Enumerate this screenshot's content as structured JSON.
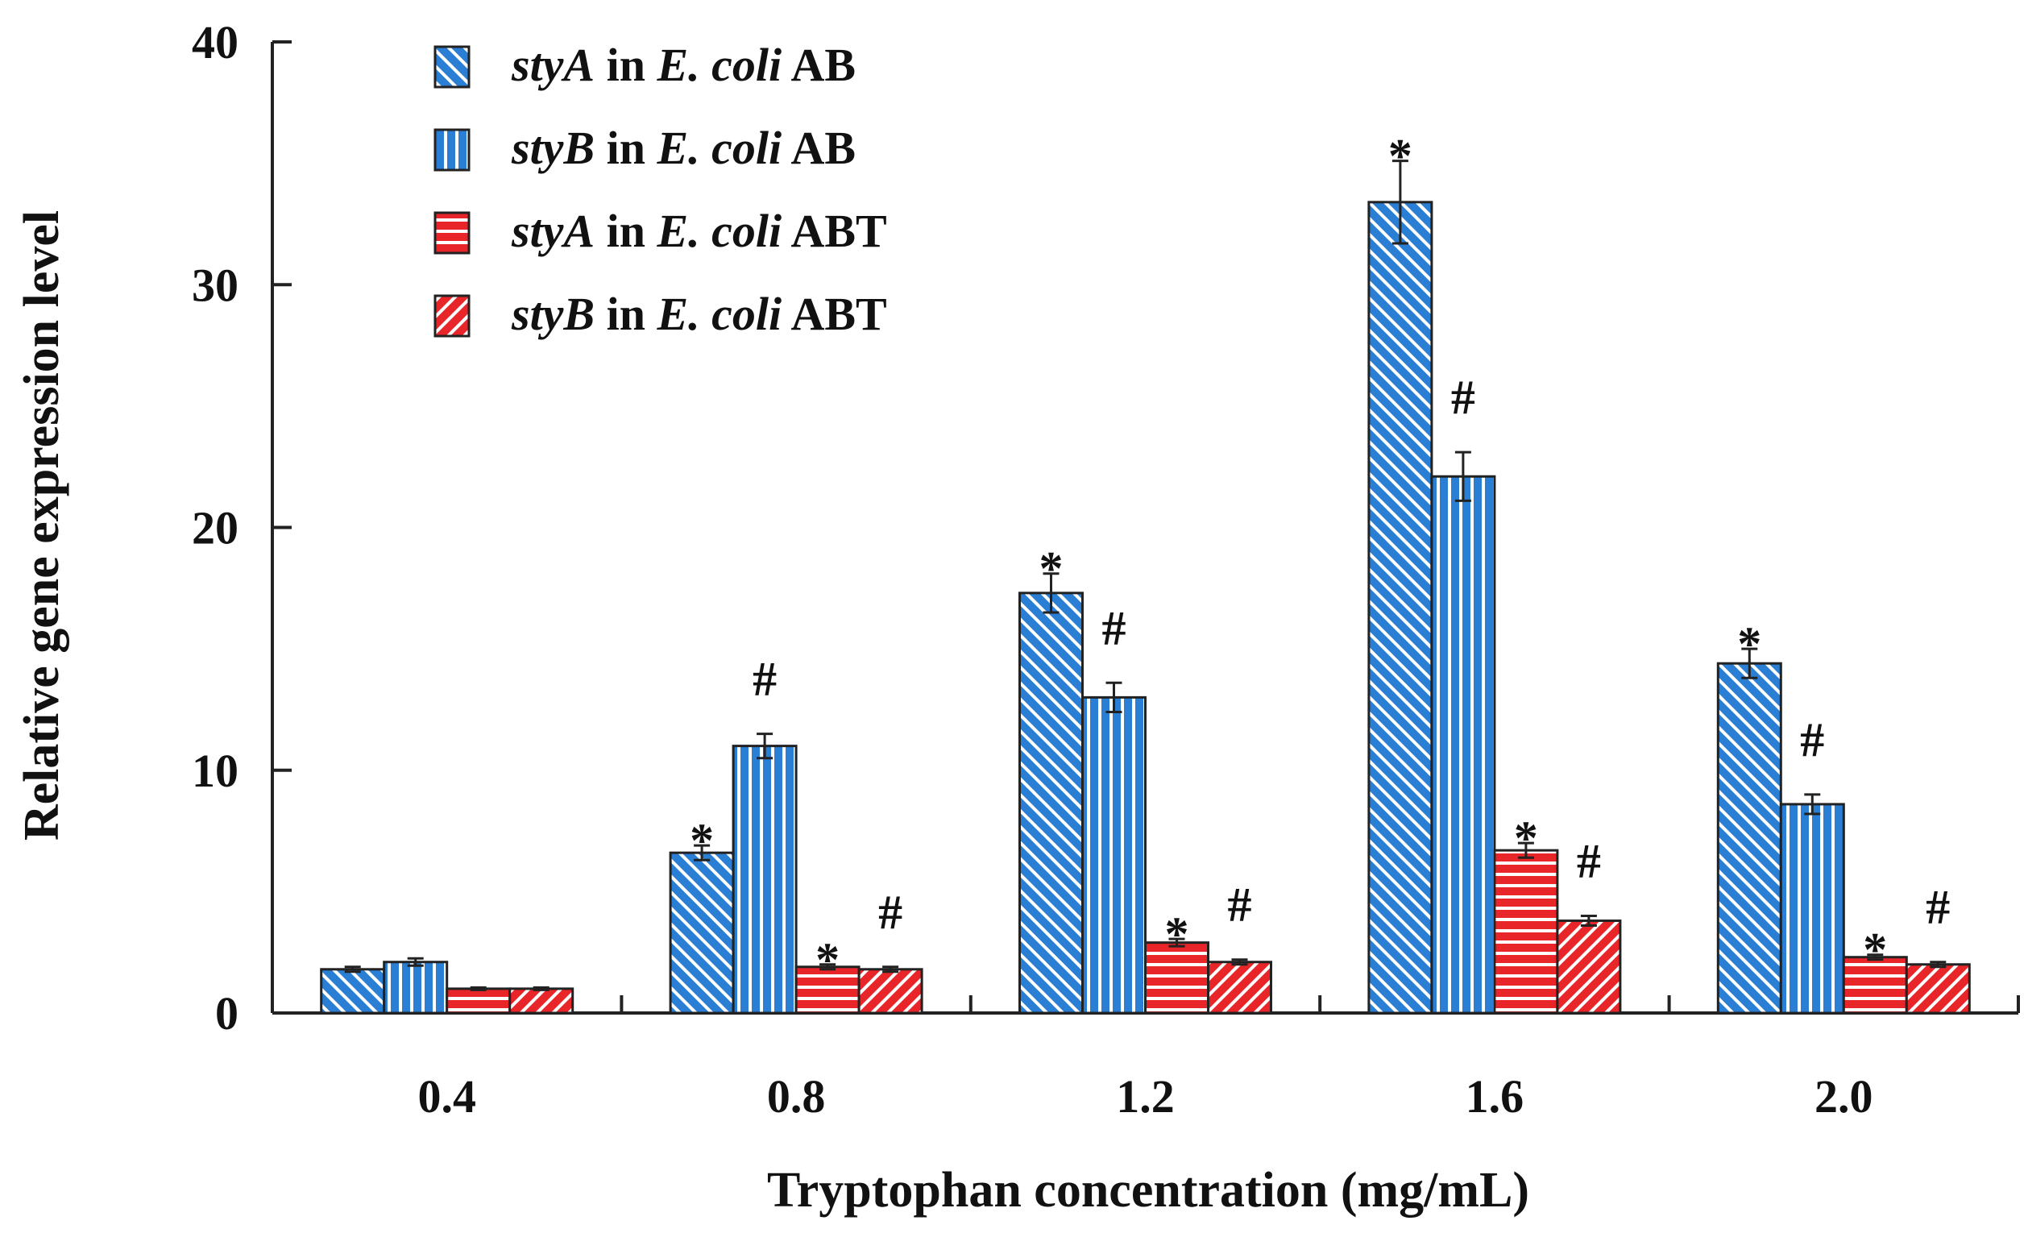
{
  "chart_data": {
    "type": "bar",
    "title": "",
    "xlabel": "Tryptophan concentration (mg/mL)",
    "ylabel": "Relative gene expression level",
    "ylim": [
      0,
      40
    ],
    "yticks": [
      0,
      10,
      20,
      30,
      40
    ],
    "ytick_labels": [
      "0",
      "10",
      "20",
      "30",
      "40"
    ],
    "categories": [
      "0.4",
      "0.8",
      "1.2",
      "1.6",
      "2.0"
    ],
    "legend_position": "top-left",
    "series": [
      {
        "name": "styA in E. coli AB",
        "gene": "styA",
        "connector": " in ",
        "species": "E. coli",
        "strain": " AB",
        "color": "#2a7fd4",
        "pattern": "diag-back",
        "values": [
          1.8,
          6.6,
          17.3,
          33.4,
          14.4
        ],
        "errors": [
          0.1,
          0.3,
          0.8,
          1.7,
          0.6
        ],
        "marks": [
          "",
          "*",
          "*",
          "*",
          "*"
        ]
      },
      {
        "name": "styB in E. coli AB",
        "gene": "styB",
        "connector": " in ",
        "species": "E. coli",
        "strain": " AB",
        "color": "#2a7fd4",
        "pattern": "vertical",
        "values": [
          2.1,
          11.0,
          13.0,
          22.1,
          8.6
        ],
        "errors": [
          0.15,
          0.5,
          0.6,
          1.0,
          0.4
        ],
        "marks": [
          "",
          "#",
          "#",
          "#",
          "#"
        ]
      },
      {
        "name": "styA in E. coli ABT",
        "gene": "styA",
        "connector": " in ",
        "species": "E. coli",
        "strain": " ABT",
        "color": "#e8262a",
        "pattern": "horizontal",
        "values": [
          1.0,
          1.9,
          2.9,
          6.7,
          2.3
        ],
        "errors": [
          0.05,
          0.1,
          0.15,
          0.3,
          0.1
        ],
        "marks": [
          "",
          "*",
          "*",
          "*",
          "*"
        ]
      },
      {
        "name": "styB in E. coli ABT",
        "gene": "styB",
        "connector": " in ",
        "species": "E. coli",
        "strain": " ABT",
        "color": "#e8262a",
        "pattern": "diag-fwd",
        "values": [
          1.0,
          1.8,
          2.1,
          3.8,
          2.0
        ],
        "errors": [
          0.05,
          0.1,
          0.1,
          0.2,
          0.1
        ],
        "marks": [
          "",
          "#",
          "#",
          "#",
          "#"
        ]
      }
    ]
  }
}
